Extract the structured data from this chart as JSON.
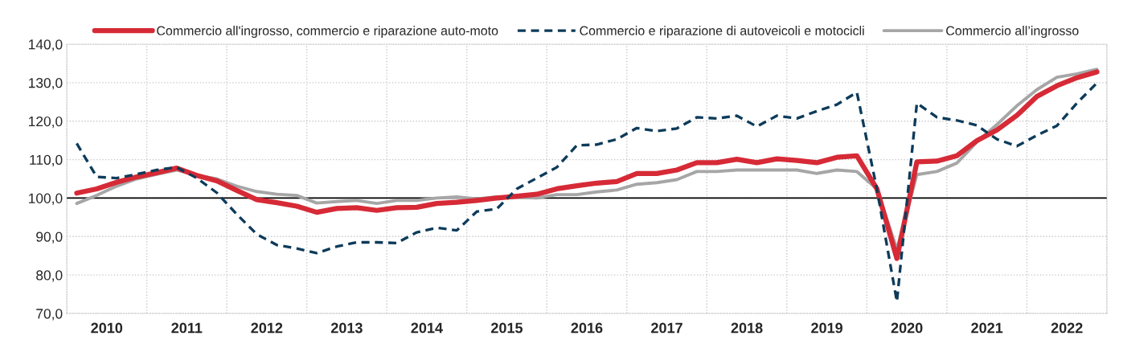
{
  "chart_data": {
    "type": "line",
    "x": [
      2010.125,
      2010.375,
      2010.625,
      2010.875,
      2011.125,
      2011.375,
      2011.625,
      2011.875,
      2012.125,
      2012.375,
      2012.625,
      2012.875,
      2013.125,
      2013.375,
      2013.625,
      2013.875,
      2014.125,
      2014.375,
      2014.625,
      2014.875,
      2015.125,
      2015.375,
      2015.625,
      2015.875,
      2016.125,
      2016.375,
      2016.625,
      2016.875,
      2017.125,
      2017.375,
      2017.625,
      2017.875,
      2018.125,
      2018.375,
      2018.625,
      2018.875,
      2019.125,
      2019.375,
      2019.625,
      2019.875,
      2020.125,
      2020.375,
      2020.625,
      2020.875,
      2021.125,
      2021.375,
      2021.625,
      2021.875,
      2022.125,
      2022.375,
      2022.625,
      2022.875
    ],
    "series": [
      {
        "name": "Commercio all'ingrosso, commercio e riparazione auto-moto",
        "color": "#d62a36",
        "line_style": "solid",
        "values": [
          101.3,
          102.4,
          104.1,
          105.5,
          106.6,
          107.8,
          105.9,
          104.5,
          102.0,
          99.6,
          98.8,
          97.9,
          96.3,
          97.3,
          97.5,
          96.8,
          97.5,
          97.6,
          98.6,
          98.9,
          99.4,
          100.0,
          100.5,
          101.0,
          102.4,
          103.2,
          103.9,
          104.3,
          106.4,
          106.4,
          107.3,
          109.2,
          109.2,
          110.1,
          109.2,
          110.2,
          109.8,
          109.2,
          110.6,
          111.0,
          102.4,
          84.3,
          109.4,
          109.6,
          111.0,
          114.9,
          117.7,
          121.5,
          126.4,
          129.2,
          131.3,
          132.8
        ]
      },
      {
        "name": "Commercio e riparazione di autoveicoli e motocicli",
        "color": "#0d3b5a",
        "line_style": "dashed",
        "values": [
          114.2,
          105.5,
          105.2,
          106.2,
          107.3,
          108.0,
          105.2,
          101.4,
          95.8,
          90.6,
          87.8,
          86.9,
          85.7,
          87.4,
          88.5,
          88.5,
          88.3,
          91.1,
          92.3,
          91.6,
          96.5,
          97.2,
          102.4,
          105.2,
          108.0,
          113.7,
          113.9,
          115.3,
          118.2,
          117.4,
          118.1,
          121.0,
          120.7,
          121.4,
          118.6,
          121.4,
          120.7,
          122.6,
          124.3,
          127.5,
          102.4,
          73.1,
          124.7,
          121.0,
          120.2,
          118.9,
          115.3,
          113.5,
          116.3,
          118.8,
          124.7,
          129.9
        ]
      },
      {
        "name": "Commercio all’ingrosso",
        "color": "#a6a6a6",
        "line_style": "solid",
        "values": [
          98.6,
          100.7,
          103.1,
          105.0,
          106.2,
          107.3,
          105.9,
          105.0,
          103.1,
          101.7,
          101.0,
          100.7,
          98.7,
          99.1,
          99.4,
          98.6,
          99.4,
          99.4,
          100.0,
          100.3,
          99.8,
          100.3,
          100.3,
          100.0,
          100.9,
          100.9,
          101.6,
          102.1,
          103.6,
          104.0,
          104.8,
          106.9,
          106.9,
          107.3,
          107.3,
          107.3,
          107.3,
          106.4,
          107.3,
          106.9,
          102.4,
          86.7,
          106.1,
          106.9,
          109.1,
          114.6,
          119.1,
          124.0,
          128.2,
          131.4,
          132.3,
          133.5
        ]
      }
    ],
    "xlim": [
      2010,
      2023
    ],
    "xticks": [
      {
        "value": 2010,
        "label": null
      },
      {
        "value": 2010.5,
        "label": "2010"
      },
      {
        "value": 2011,
        "label": null
      },
      {
        "value": 2011.5,
        "label": "2011"
      },
      {
        "value": 2012,
        "label": null
      },
      {
        "value": 2012.5,
        "label": "2012"
      },
      {
        "value": 2013,
        "label": null
      },
      {
        "value": 2013.5,
        "label": "2013"
      },
      {
        "value": 2014,
        "label": null
      },
      {
        "value": 2014.5,
        "label": "2014"
      },
      {
        "value": 2015,
        "label": null
      },
      {
        "value": 2015.5,
        "label": "2015"
      },
      {
        "value": 2016,
        "label": null
      },
      {
        "value": 2016.5,
        "label": "2016"
      },
      {
        "value": 2017,
        "label": null
      },
      {
        "value": 2017.5,
        "label": "2017"
      },
      {
        "value": 2018,
        "label": null
      },
      {
        "value": 2018.5,
        "label": "2018"
      },
      {
        "value": 2019,
        "label": null
      },
      {
        "value": 2019.5,
        "label": "2019"
      },
      {
        "value": 2020,
        "label": null
      },
      {
        "value": 2020.5,
        "label": "2020"
      },
      {
        "value": 2021,
        "label": null
      },
      {
        "value": 2021.5,
        "label": "2021"
      },
      {
        "value": 2022,
        "label": null
      },
      {
        "value": 2022.5,
        "label": "2022"
      },
      {
        "value": 2023,
        "label": null
      }
    ],
    "ylim": [
      70,
      140
    ],
    "yticks": [
      {
        "value": 70,
        "label": "70,0"
      },
      {
        "value": 80,
        "label": "80,0"
      },
      {
        "value": 90,
        "label": "90,0"
      },
      {
        "value": 100,
        "label": "100,0"
      },
      {
        "value": 110,
        "label": "110,0"
      },
      {
        "value": 120,
        "label": "120,0"
      },
      {
        "value": 130,
        "label": "130,0"
      },
      {
        "value": 140,
        "label": "140,0"
      }
    ],
    "ref_lines": [
      {
        "axis": "y",
        "value": 100,
        "color": "#000000"
      }
    ],
    "grid": true,
    "legend": "top"
  }
}
